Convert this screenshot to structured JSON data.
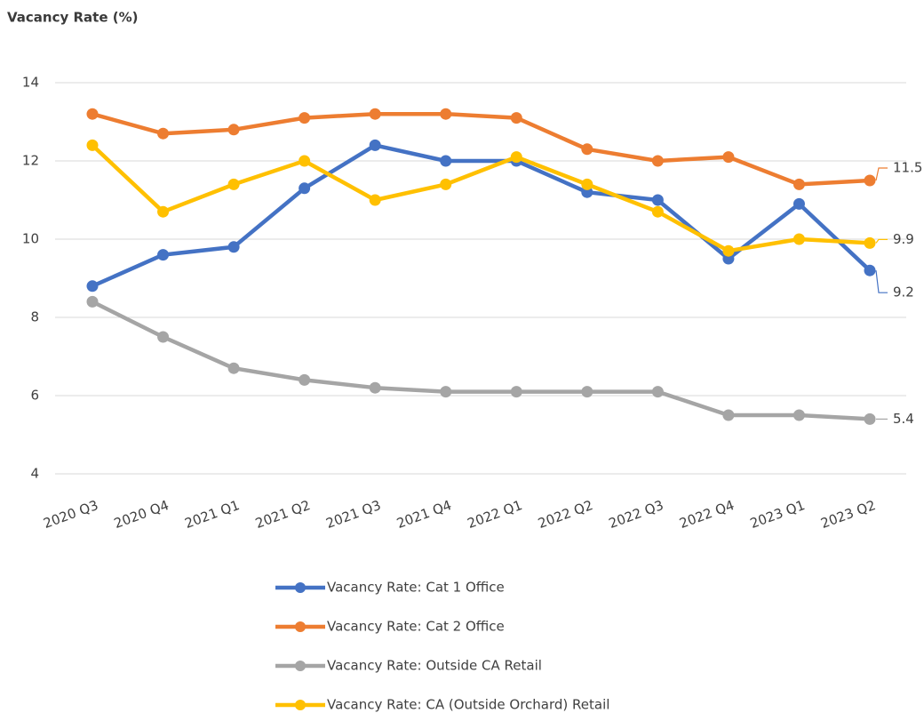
{
  "chart_data": {
    "type": "line",
    "title": "Vacancy Rate (%)",
    "categories": [
      "2020 Q3",
      "2020 Q4",
      "2021 Q1",
      "2021 Q2",
      "2021 Q3",
      "2021 Q4",
      "2022 Q1",
      "2022 Q2",
      "2022 Q3",
      "2022 Q4",
      "2023 Q1",
      "2023 Q2"
    ],
    "series": [
      {
        "name": "Vacancy Rate: Cat 1 Office",
        "color": "#4472c4",
        "values": [
          8.8,
          9.6,
          9.8,
          11.3,
          12.4,
          12.0,
          12.0,
          11.2,
          11.0,
          9.5,
          10.9,
          9.2
        ]
      },
      {
        "name": "Vacancy Rate: Cat 2 Office",
        "color": "#ed7d31",
        "values": [
          13.2,
          12.7,
          12.8,
          13.1,
          13.2,
          13.2,
          13.1,
          12.3,
          12.0,
          12.1,
          11.4,
          11.5
        ]
      },
      {
        "name": "Vacancy Rate: Outside CA Retail",
        "color": "#a5a5a5",
        "values": [
          8.4,
          7.5,
          6.7,
          6.4,
          6.2,
          6.1,
          6.1,
          6.1,
          6.1,
          5.5,
          5.5,
          5.4
        ]
      },
      {
        "name": "Vacancy Rate: CA (Outside Orchard) Retail",
        "color": "#ffc000",
        "values": [
          12.4,
          10.7,
          11.4,
          12.0,
          11.0,
          11.4,
          12.1,
          11.4,
          10.7,
          9.7,
          10.0,
          9.9
        ]
      }
    ],
    "ylim": [
      4,
      14
    ],
    "yticks": [
      4,
      6,
      8,
      10,
      12,
      14
    ],
    "grid": true
  }
}
